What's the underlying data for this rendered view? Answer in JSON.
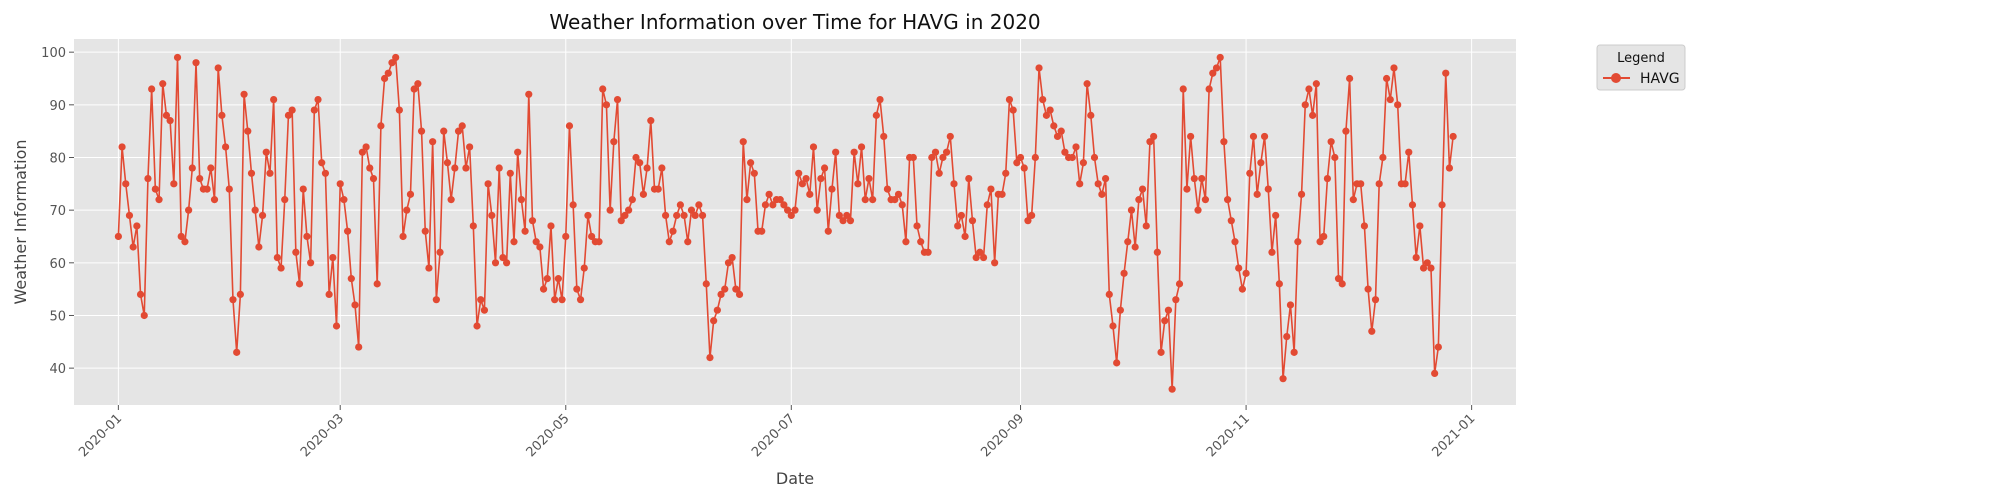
{
  "chart_data": {
    "type": "line",
    "title": "Weather Information over Time for HAVG in 2020",
    "xlabel": "Date",
    "ylabel": "Weather Information",
    "x_start": "2020-01-01",
    "x_end": "2020-12-31",
    "xlim": [
      "2019-12-20",
      "2021-01-13"
    ],
    "ylim": [
      33,
      102.5
    ],
    "x_ticks": [
      "2020-01",
      "2020-03",
      "2020-05",
      "2020-07",
      "2020-09",
      "2020-11",
      "2021-01"
    ],
    "y_ticks": [
      40,
      50,
      60,
      70,
      80,
      90,
      100
    ],
    "grid": true,
    "legend": {
      "title": "Legend",
      "position": "outside-top-right"
    },
    "series": [
      {
        "name": "HAVG",
        "color": "#E24A33",
        "values": [
          65,
          82,
          75,
          69,
          63,
          67,
          54,
          50,
          76,
          93,
          74,
          72,
          94,
          88,
          87,
          75,
          99,
          65,
          64,
          70,
          78,
          98,
          76,
          74,
          74,
          78,
          72,
          97,
          88,
          82,
          74,
          53,
          43,
          54,
          92,
          85,
          77,
          70,
          63,
          69,
          81,
          77,
          91,
          61,
          59,
          72,
          88,
          89,
          62,
          56,
          74,
          65,
          60,
          89,
          91,
          79,
          77,
          54,
          61,
          48,
          75,
          72,
          66,
          57,
          52,
          44,
          81,
          82,
          78,
          76,
          56,
          86,
          95,
          96,
          98,
          99,
          89,
          65,
          70,
          73,
          93,
          94,
          85,
          66,
          59,
          83,
          53,
          62,
          85,
          79,
          72,
          78,
          85,
          86,
          78,
          82,
          67,
          48,
          53,
          51,
          75,
          69,
          60,
          78,
          61,
          60,
          77,
          64,
          81,
          72,
          66,
          92,
          68,
          64,
          63,
          55,
          57,
          67,
          53,
          57,
          53,
          65,
          86,
          71,
          55,
          53,
          59,
          69,
          65,
          64,
          64,
          93,
          90,
          70,
          83,
          91,
          68,
          69,
          70,
          72,
          80,
          79,
          73,
          78,
          87,
          74,
          74,
          78,
          69,
          64,
          66,
          69,
          71,
          69,
          64,
          70,
          69,
          71,
          69,
          56,
          42,
          49,
          51,
          54,
          55,
          60,
          61,
          55,
          54,
          83,
          72,
          79,
          77,
          66,
          66,
          71,
          73,
          71,
          72,
          72,
          71,
          70,
          69,
          70,
          77,
          75,
          76,
          73,
          82,
          70,
          76,
          78,
          66,
          74,
          81,
          69,
          68,
          69,
          68,
          81,
          75,
          82,
          72,
          76,
          72,
          88,
          91,
          84,
          74,
          72,
          72,
          73,
          71,
          64,
          80,
          80,
          67,
          64,
          62,
          62,
          80,
          81,
          77,
          80,
          81,
          84,
          75,
          67,
          69,
          65,
          76,
          68,
          61,
          62,
          61,
          71,
          74,
          60,
          73,
          73,
          77,
          91,
          89,
          79,
          80,
          78,
          68,
          69,
          80,
          97,
          91,
          88,
          89,
          86,
          84,
          85,
          81,
          80,
          80,
          82,
          75,
          79,
          94,
          88,
          80,
          75,
          73,
          76,
          54,
          48,
          41,
          51,
          58,
          64,
          70,
          63,
          72,
          74,
          67,
          83,
          84,
          62,
          43,
          49,
          51,
          36,
          53,
          56,
          93,
          74,
          84,
          76,
          70,
          76,
          72,
          93,
          96,
          97,
          99,
          83,
          72,
          68,
          64,
          59,
          55,
          58,
          77,
          84,
          73,
          79,
          84,
          74,
          62,
          69,
          56,
          38,
          46,
          52,
          43,
          64,
          73,
          90,
          93,
          88,
          94,
          64,
          65,
          76,
          83,
          80,
          57,
          56,
          85,
          95,
          72,
          75,
          75,
          67,
          55,
          47,
          53,
          75,
          80,
          95,
          91,
          97,
          90,
          75,
          75,
          81,
          71,
          61,
          67,
          59,
          60,
          59,
          39,
          44,
          71,
          96,
          78,
          84
        ]
      }
    ]
  }
}
